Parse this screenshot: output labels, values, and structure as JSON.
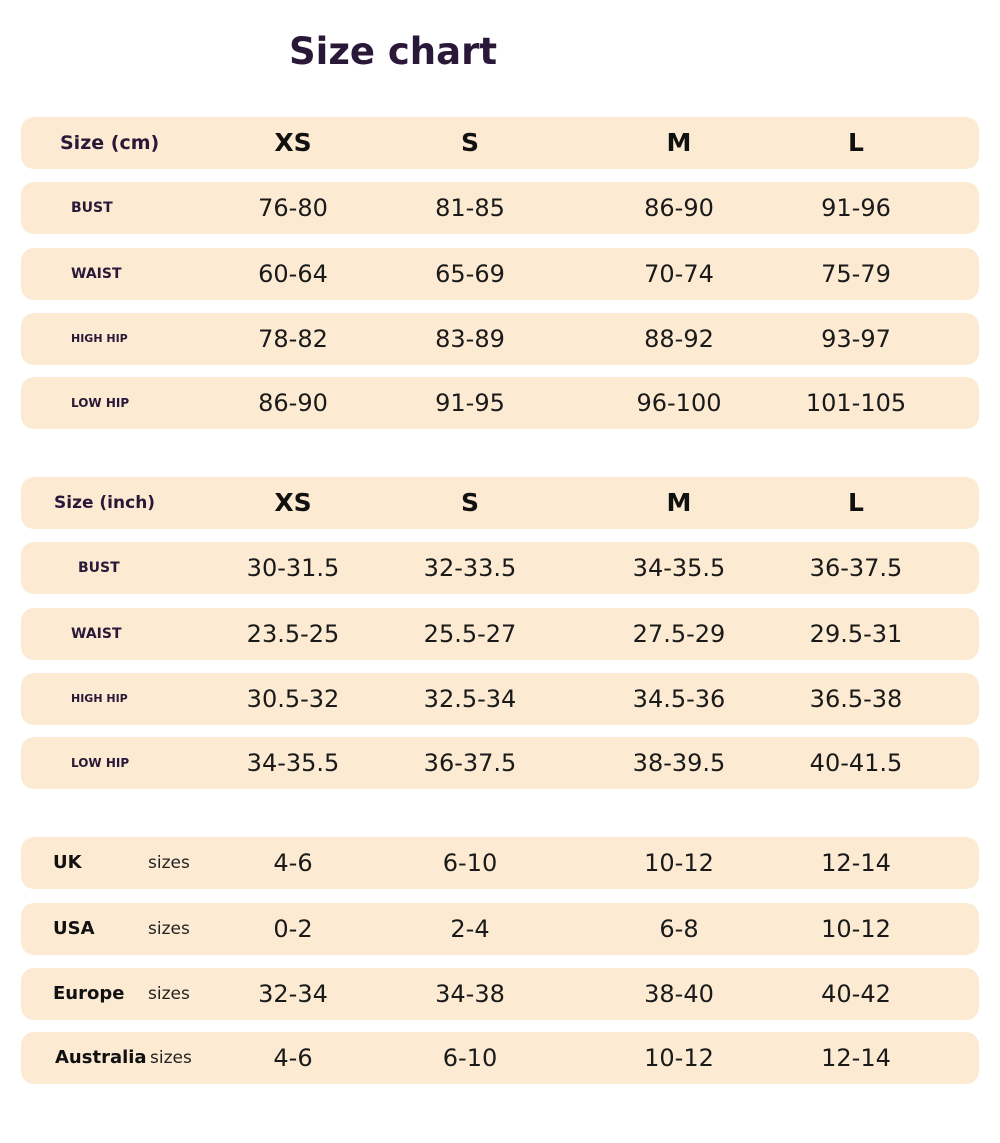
{
  "title": "Size chart",
  "colors": {
    "row_background": "#fcebd2",
    "label_text": "#2a1838"
  },
  "columns": [
    "XS",
    "S",
    "M",
    "L"
  ],
  "cm_table": {
    "header": "Size (cm)",
    "rows": [
      {
        "label": "BUST",
        "values": [
          "76-80",
          "81-85",
          "86-90",
          "91-96"
        ]
      },
      {
        "label": "WAIST",
        "values": [
          "60-64",
          "65-69",
          "70-74",
          "75-79"
        ]
      },
      {
        "label": "HIGH HIP",
        "values": [
          "78-82",
          "83-89",
          "88-92",
          "93-97"
        ]
      },
      {
        "label": "LOW HIP",
        "values": [
          "86-90",
          "91-95",
          "96-100",
          "101-105"
        ]
      }
    ]
  },
  "inch_table": {
    "header": "Size (inch)",
    "rows": [
      {
        "label": "BUST",
        "values": [
          "30-31.5",
          "32-33.5",
          "34-35.5",
          "36-37.5"
        ]
      },
      {
        "label": "WAIST",
        "values": [
          "23.5-25",
          "25.5-27",
          "27.5-29",
          "29.5-31"
        ]
      },
      {
        "label": "HIGH HIP",
        "values": [
          "30.5-32",
          "32.5-34",
          "34.5-36",
          "36.5-38"
        ]
      },
      {
        "label": "LOW HIP",
        "values": [
          "34-35.5",
          "36-37.5",
          "38-39.5",
          "40-41.5"
        ]
      }
    ]
  },
  "international": {
    "suffix": "sizes",
    "rows": [
      {
        "label": "UK",
        "values": [
          "4-6",
          "6-10",
          "10-12",
          "12-14"
        ]
      },
      {
        "label": "USA",
        "values": [
          "0-2",
          "2-4",
          "6-8",
          "10-12"
        ]
      },
      {
        "label": "Europe",
        "values": [
          "32-34",
          "34-38",
          "38-40",
          "40-42"
        ]
      },
      {
        "label": "Australia",
        "values": [
          "4-6",
          "6-10",
          "10-12",
          "12-14"
        ]
      }
    ]
  }
}
